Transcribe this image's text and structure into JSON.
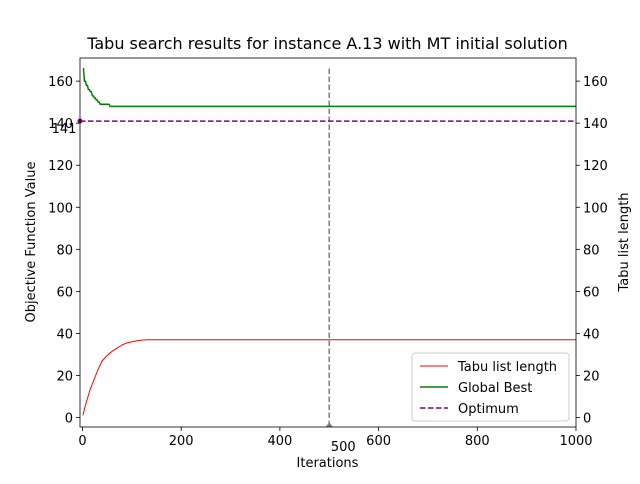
{
  "chart_data": {
    "type": "line",
    "title": "Tabu search results for instance A.13 with MT initial solution",
    "xlabel": "Iterations",
    "ylabel": "Objective Function Value",
    "ylabel_right": "Tabu list length",
    "xlim": [
      -5,
      1000
    ],
    "ylim": [
      -4.5,
      171
    ],
    "ylim_right": [
      -4.5,
      171
    ],
    "x_ticks": [
      0,
      200,
      400,
      600,
      800,
      1000
    ],
    "y_ticks": [
      0,
      20,
      40,
      60,
      80,
      100,
      120,
      140,
      160
    ],
    "y_ticks_right": [
      0,
      20,
      40,
      60,
      80,
      100,
      120,
      140,
      160
    ],
    "series": [
      {
        "name": "Tabu list length",
        "color": "#ff0000",
        "style": "solid",
        "x": [
          1,
          5,
          10,
          15,
          20,
          30,
          40,
          50,
          60,
          70,
          80,
          90,
          100,
          110,
          120,
          130,
          150,
          200,
          300,
          400,
          500,
          600,
          800,
          1000
        ],
        "y": [
          1,
          5,
          9,
          13,
          16,
          22,
          27,
          29.5,
          31.5,
          33,
          34.5,
          35.5,
          36,
          36.5,
          36.8,
          37,
          37,
          37,
          37,
          37,
          37,
          37,
          37,
          37
        ]
      },
      {
        "name": "Global Best",
        "color": "#008000",
        "style": "solid",
        "x": [
          1,
          2,
          4,
          6,
          8,
          10,
          12,
          14,
          16,
          18,
          20,
          22,
          24,
          26,
          28,
          30,
          32,
          34,
          36,
          38,
          40,
          42,
          44,
          46,
          48,
          50,
          52,
          54,
          56,
          58,
          60,
          200,
          400,
          600,
          800,
          1000
        ],
        "y": [
          166,
          166,
          160,
          160,
          158,
          158,
          156,
          156,
          155,
          155,
          153,
          153,
          152,
          152,
          151,
          151,
          150,
          150,
          149,
          149,
          149,
          149,
          149,
          149,
          149,
          149,
          149,
          149,
          148,
          148,
          148,
          148,
          148,
          148,
          148,
          148
        ]
      },
      {
        "name": "Optimum",
        "color": "#800080",
        "style": "dashed",
        "x": [
          -5,
          1000
        ],
        "y": [
          141,
          141
        ]
      }
    ],
    "vline": {
      "x": 500,
      "label": "500",
      "color": "#808080"
    },
    "optimum_annotation": {
      "y": 141,
      "label": "141"
    },
    "legend": {
      "position": "bottom-right"
    },
    "grid": false
  }
}
